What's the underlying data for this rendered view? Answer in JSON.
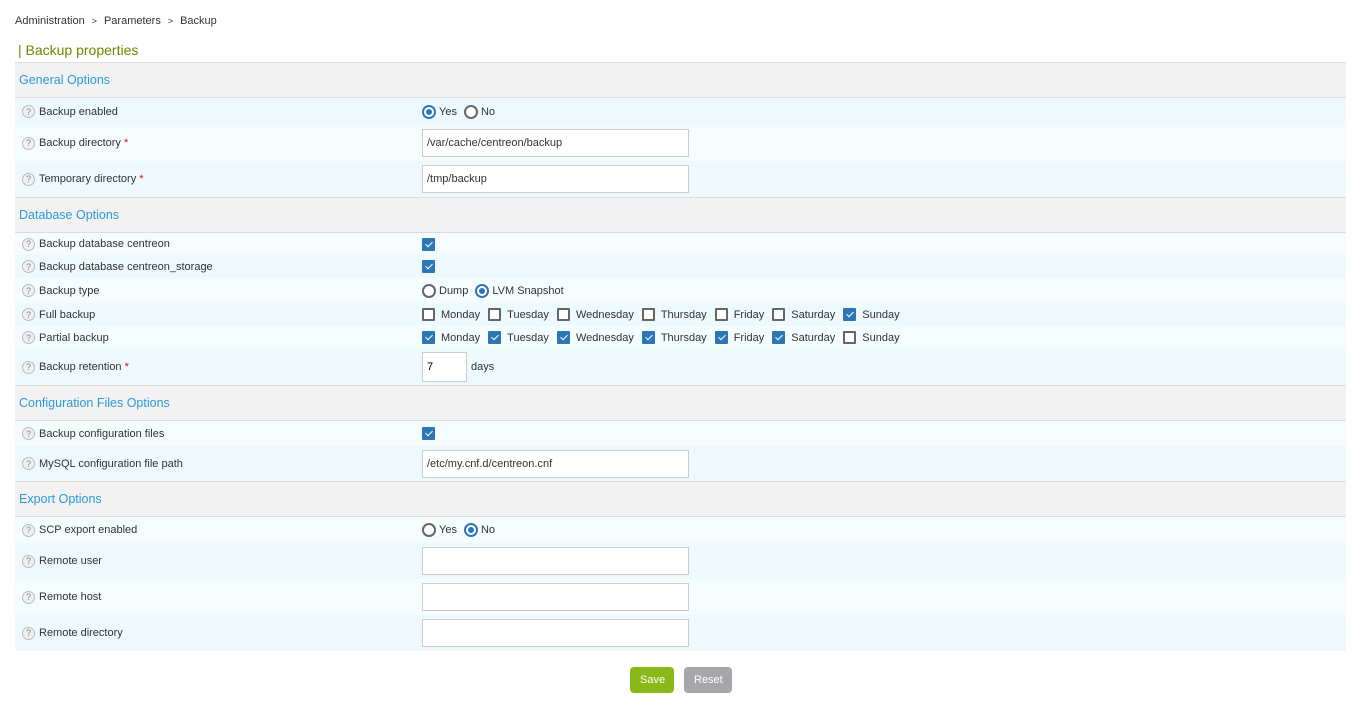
{
  "breadcrumb": [
    "Administration",
    "Parameters",
    "Backup"
  ],
  "page_title": "| Backup properties",
  "colors": {
    "accent": "#2e75b6",
    "section": "#2d9ad6",
    "title": "#6b8a00",
    "save": "#88b917",
    "reset": "#a6a7ab"
  },
  "sections": [
    {
      "title": "General Options",
      "rows": [
        {
          "label": "Backup enabled",
          "type": "radio",
          "options": [
            "Yes",
            "No"
          ],
          "selected": "Yes",
          "h": 27
        },
        {
          "label": "Backup directory",
          "required": true,
          "type": "text",
          "value": "/var/cache/centreon/backup",
          "h": 36
        },
        {
          "label": "Temporary directory",
          "required": true,
          "type": "text",
          "value": "/tmp/backup",
          "h": 36
        }
      ]
    },
    {
      "title": "Database Options",
      "rows": [
        {
          "label": "Backup database centreon",
          "type": "checkbox",
          "checked": true,
          "h": 22
        },
        {
          "label": "Backup database centreon_storage",
          "type": "checkbox",
          "checked": true,
          "h": 23
        },
        {
          "label": "Backup type",
          "type": "radio",
          "options": [
            "Dump",
            "LVM Snapshot"
          ],
          "selected": "LVM Snapshot",
          "h": 25
        },
        {
          "label": " Full backup",
          "type": "days",
          "days": [
            "Monday",
            "Tuesday",
            "Wednesday",
            "Thursday",
            "Friday",
            "Saturday",
            "Sunday"
          ],
          "checked": [
            false,
            false,
            false,
            false,
            false,
            false,
            true
          ],
          "h": 23
        },
        {
          "label": "Partial backup",
          "type": "days",
          "days": [
            "Monday",
            "Tuesday",
            "Wednesday",
            "Thursday",
            "Friday",
            "Saturday",
            "Sunday"
          ],
          "checked": [
            true,
            true,
            true,
            true,
            true,
            true,
            false
          ],
          "h": 23
        },
        {
          "label": "Backup retention",
          "required": true,
          "type": "number",
          "value": "7",
          "unit": "days",
          "h": 36
        }
      ]
    },
    {
      "title": "Configuration Files Options",
      "rows": [
        {
          "label": "Backup configuration files",
          "type": "checkbox",
          "checked": true,
          "h": 25
        },
        {
          "label": "MySQL configuration file path",
          "type": "text",
          "value": "/etc/my.cnf.d/centreon.cnf",
          "h": 35
        }
      ]
    },
    {
      "title": "Export Options",
      "rows": [
        {
          "label": "SCP export enabled",
          "type": "radio",
          "options": [
            "Yes",
            "No"
          ],
          "selected": "No",
          "h": 26
        },
        {
          "label": "Remote user",
          "type": "text",
          "value": "",
          "h": 36
        },
        {
          "label": "Remote host",
          "type": "text",
          "value": "",
          "h": 36
        },
        {
          "label": "Remote directory",
          "type": "text",
          "value": "",
          "h": 36
        }
      ]
    }
  ],
  "buttons": {
    "save": "Save",
    "reset": "Reset"
  }
}
